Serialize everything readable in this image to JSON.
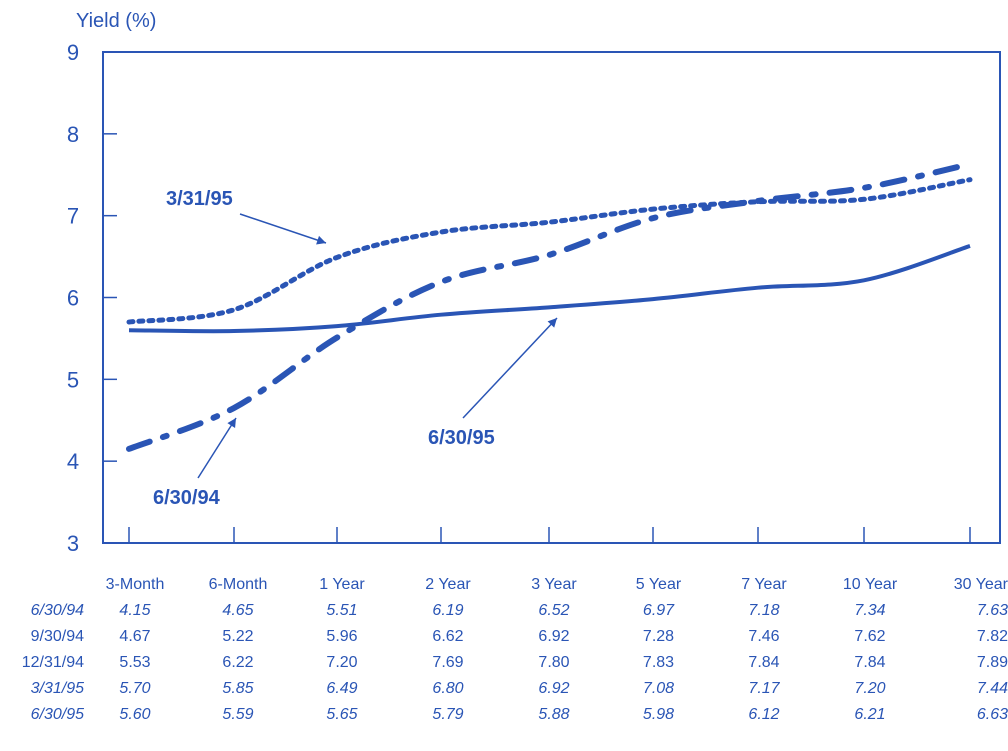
{
  "chart_data": {
    "type": "line",
    "ylabel": "Yield (%)",
    "ylim": [
      3,
      9
    ],
    "yticks": [
      3,
      4,
      5,
      6,
      7,
      8,
      9
    ],
    "categories": [
      "3-Month",
      "6-Month",
      "1 Year",
      "2 Year",
      "3 Year",
      "5 Year",
      "7 Year",
      "10 Year",
      "30 Year"
    ],
    "series": [
      {
        "name": "6/30/94",
        "plotted": true,
        "style": "dash-dot",
        "values": [
          4.15,
          4.65,
          5.51,
          6.19,
          6.52,
          6.97,
          7.18,
          7.34,
          7.63
        ]
      },
      {
        "name": "9/30/94",
        "plotted": false,
        "values": [
          4.67,
          5.22,
          5.96,
          6.62,
          6.92,
          7.28,
          7.46,
          7.62,
          7.82
        ]
      },
      {
        "name": "12/31/94",
        "plotted": false,
        "values": [
          5.53,
          6.22,
          7.2,
          7.69,
          7.8,
          7.83,
          7.84,
          7.84,
          7.89
        ]
      },
      {
        "name": "3/31/95",
        "plotted": true,
        "style": "dotted",
        "values": [
          5.7,
          5.85,
          6.49,
          6.8,
          6.92,
          7.08,
          7.17,
          7.2,
          7.44
        ]
      },
      {
        "name": "6/30/95",
        "plotted": true,
        "style": "solid",
        "values": [
          5.6,
          5.59,
          5.65,
          5.79,
          5.88,
          5.98,
          6.12,
          6.21,
          6.63
        ]
      }
    ],
    "table_rows": [
      {
        "label": "6/30/94",
        "italic": true,
        "values": [
          "4.15",
          "4.65",
          "5.51",
          "6.19",
          "6.52",
          "6.97",
          "7.18",
          "7.34",
          "7.63"
        ]
      },
      {
        "label": "9/30/94",
        "italic": false,
        "values": [
          "4.67",
          "5.22",
          "5.96",
          "6.62",
          "6.92",
          "7.28",
          "7.46",
          "7.62",
          "7.82"
        ]
      },
      {
        "label": "12/31/94",
        "italic": false,
        "values": [
          "5.53",
          "6.22",
          "7.20",
          "7.69",
          "7.80",
          "7.83",
          "7.84",
          "7.84",
          "7.89"
        ]
      },
      {
        "label": "3/31/95",
        "italic": true,
        "values": [
          "5.70",
          "5.85",
          "6.49",
          "6.80",
          "6.92",
          "7.08",
          "7.17",
          "7.20",
          "7.44"
        ]
      },
      {
        "label": "6/30/95",
        "italic": true,
        "values": [
          "5.60",
          "5.59",
          "5.65",
          "5.79",
          "5.88",
          "5.98",
          "6.12",
          "6.21",
          "6.63"
        ]
      }
    ],
    "annotations": [
      "3/31/95",
      "6/30/95",
      "6/30/94"
    ],
    "grid": false,
    "color": "#2a55b5"
  }
}
